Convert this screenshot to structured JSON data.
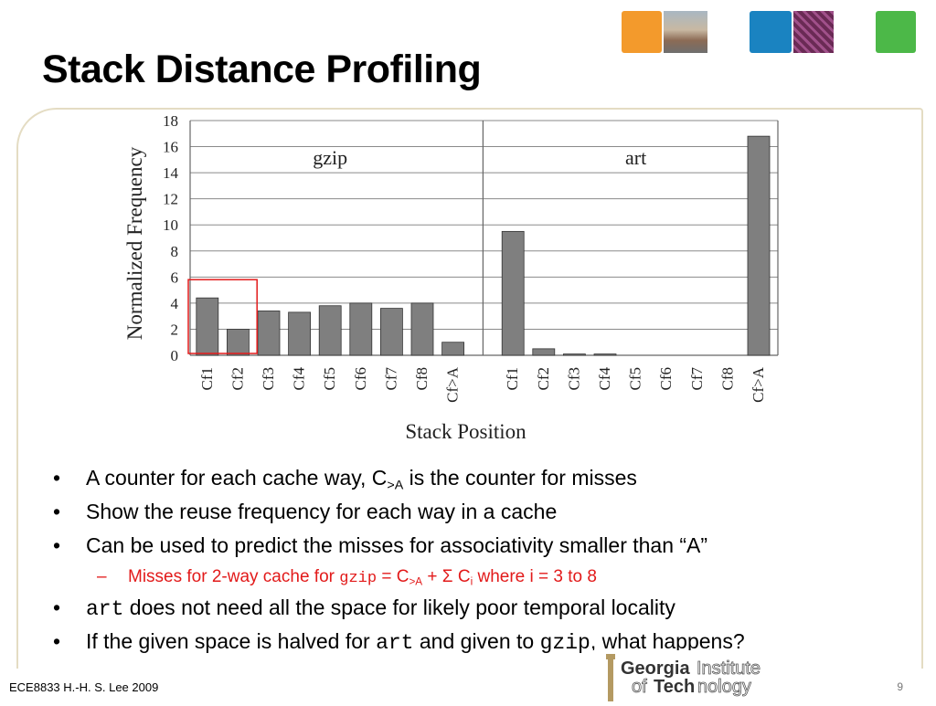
{
  "slide": {
    "title": "Stack Distance Profiling",
    "footer": "ECE8833 H.-H. S. Lee 2009",
    "page_number": "9",
    "logo": {
      "line1a": "Georgia",
      "line1b": "Institute",
      "line2a": "of ",
      "line2b": "Tech",
      "line2c": "nology"
    },
    "colors": {
      "accent": "#e21a1a",
      "bar_fill": "#7f7f7f",
      "frame": "#e4dcc3"
    }
  },
  "thumbnails": [
    "orange-tile",
    "campus-photo",
    "blue-tile",
    "circuit-photo",
    "green-tile"
  ],
  "bullets": [
    {
      "text_before": "A counter for each cache way, C",
      "sub": ">A",
      "text_after": " is the counter for misses"
    },
    {
      "text": "Show the reuse frequency for each way in a cache"
    },
    {
      "text": "Can be used to predict the misses for associativity smaller than “A”"
    },
    {
      "sub_item": {
        "t1": "Misses for 2-way cache for ",
        "code": "gzip",
        "t2": " = C",
        "s1": ">A",
        "t3": " + Σ C",
        "s2": "i",
        "t4": " where i = 3 to 8"
      }
    },
    {
      "code": "art",
      "text": " does not need all the space for likely poor temporal locality"
    },
    {
      "t1": "If the given space is halved for ",
      "code1": "art",
      "t2": " and given to ",
      "code2": "gzip",
      "t3": ", what happens?"
    }
  ],
  "chart_data": {
    "type": "bar",
    "xlabel": "Stack Position",
    "ylabel": "Normalized Frequency",
    "ylim": [
      0,
      18
    ],
    "yticks": [
      0,
      2,
      4,
      6,
      8,
      10,
      12,
      14,
      16,
      18
    ],
    "grid": true,
    "series": [
      {
        "name": "gzip",
        "categories": [
          "Cf1",
          "Cf2",
          "Cf3",
          "Cf4",
          "Cf5",
          "Cf6",
          "Cf7",
          "Cf8",
          "Cf>A"
        ],
        "values": [
          4.4,
          2.0,
          3.4,
          3.3,
          3.8,
          4.0,
          3.6,
          4.0,
          1.0
        ]
      },
      {
        "name": "art",
        "categories": [
          "Cf1",
          "Cf2",
          "Cf3",
          "Cf4",
          "Cf5",
          "Cf6",
          "Cf7",
          "Cf8",
          "Cf>A"
        ],
        "values": [
          9.5,
          0.5,
          0.1,
          0.1,
          0,
          0,
          0,
          0,
          16.8
        ]
      }
    ],
    "highlight": {
      "group": "gzip",
      "categories": [
        "Cf1",
        "Cf2"
      ],
      "color": "#e21a1a"
    }
  }
}
